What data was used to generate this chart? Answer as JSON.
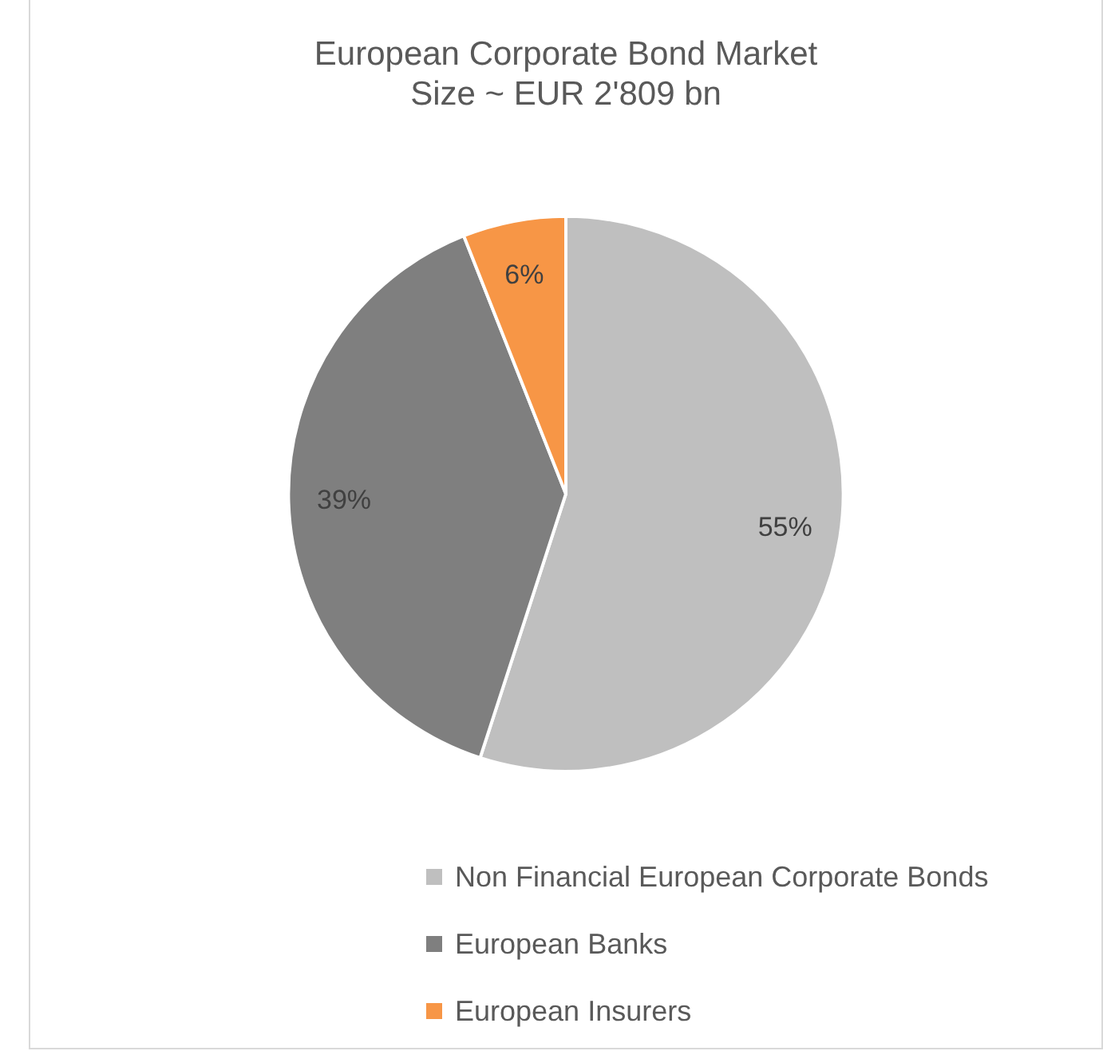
{
  "chart_data": {
    "type": "pie",
    "title": "European Corporate Bond Market\nSize ~ EUR 2'809 bn",
    "categories": [
      "Non Financial European Corporate Bonds",
      "European Banks",
      "European Insurers"
    ],
    "values": [
      55,
      39,
      6
    ],
    "colors": [
      "#bfbfbf",
      "#7f7f7f",
      "#f79646"
    ],
    "value_labels": [
      "55%",
      "39%",
      "6%"
    ],
    "legend": "bottom"
  }
}
